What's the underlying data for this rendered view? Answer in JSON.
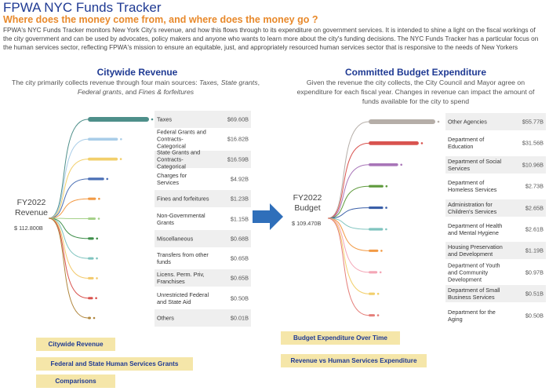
{
  "header": {
    "title": "FPWA NYC Funds Tracker",
    "subtitle": "Where does the money come from, and where does the money go ?",
    "intro": "FPWA's NYC Funds Tracker monitors New York City's revenue, and how this flows through to its expenditure on government services. It is intended to shine a light on the fiscal workings of the city government and can be used by advocates, policy makers and anyone who wants to learn more about the city's funding decisions. The NYC Funds Tracker has a particular focus on the human services sector, reflecting FPWA's mission to ensure an equitable, just, and appropriately resourced human services sector that is responsive to the needs of New Yorkers"
  },
  "revenue": {
    "title": "Citywide Revenue",
    "desc_plain": "The city primarily collects revenue through four main sources: ",
    "desc_em1": "Taxes, State grants",
    "desc_sep1": ", ",
    "desc_em2": "Federal grants",
    "desc_sep2": ", and ",
    "desc_em3": "Fines & forfeitures",
    "fy_line1": "FY2022",
    "fy_line2": "Revenue",
    "total": "$   112.800B",
    "items": [
      {
        "label": "Taxes",
        "value": "$69.60B",
        "amount": 69.6,
        "color": "#4e8f8a"
      },
      {
        "label": "Federal Grants and Contracts-Categorical",
        "value": "$16.82B",
        "amount": 16.82,
        "color": "#a9cde8"
      },
      {
        "label": "State Grants and Contracts-Categorical",
        "value": "$16.59B",
        "amount": 16.59,
        "color": "#f2cf6b"
      },
      {
        "label": "Charges for Services",
        "value": "$4.92B",
        "amount": 4.92,
        "color": "#4a6fb5"
      },
      {
        "label": "Fines and forfeitures",
        "value": "$1.23B",
        "amount": 1.23,
        "color": "#f29a45"
      },
      {
        "label": "Non-Governmental Grants",
        "value": "$1.15B",
        "amount": 1.15,
        "color": "#a6d18a"
      },
      {
        "label": "Miscellaneous",
        "value": "$0.68B",
        "amount": 0.68,
        "color": "#3f8f4a"
      },
      {
        "label": "Transfers from other funds",
        "value": "$0.65B",
        "amount": 0.65,
        "color": "#7fc4bf"
      },
      {
        "label": "Licens. Perm. Priv, Franchises",
        "value": "$0.65B",
        "amount": 0.65,
        "color": "#f2c96b"
      },
      {
        "label": "Unrestricted Federal and State Aid",
        "value": "$0.50B",
        "amount": 0.5,
        "color": "#d9534f"
      },
      {
        "label": "Others",
        "value": "$0.01B",
        "amount": 0.01,
        "color": "#b0863c"
      }
    ]
  },
  "expenditure": {
    "title": "Committed Budget Expenditure",
    "desc": "Given the revenue the city collects, the City Council and Mayor agree on expenditure for each fiscal year. Changes in revenue can impact the amount of funds available for the city to spend",
    "fy_line1": "FY2022",
    "fy_line2": "Budget",
    "total": "$   109.470B",
    "items": [
      {
        "label": "Other Agencies",
        "value": "$55.77B",
        "amount": 55.77,
        "color": "#b5aea8"
      },
      {
        "label": "Department of Education",
        "value": "$31.56B",
        "amount": 31.56,
        "color": "#d9534f"
      },
      {
        "label": "Department of Social Services",
        "value": "$10.96B",
        "amount": 10.96,
        "color": "#a875b8"
      },
      {
        "label": "Department of Homeless Services",
        "value": "$2.73B",
        "amount": 2.73,
        "color": "#5e9a3c"
      },
      {
        "label": "Administration for Children's Services",
        "value": "$2.65B",
        "amount": 2.65,
        "color": "#3a5fa8"
      },
      {
        "label": "Department of Health and Mental Hygiene",
        "value": "$2.61B",
        "amount": 2.61,
        "color": "#7fc4bf"
      },
      {
        "label": "Housing Preservation and Development",
        "value": "$1.19B",
        "amount": 1.19,
        "color": "#f29a45"
      },
      {
        "label": "Department of Youth and Community Development",
        "value": "$0.97B",
        "amount": 0.97,
        "color": "#f4a6b6"
      },
      {
        "label": "Department of Small Business Services",
        "value": "$0.51B",
        "amount": 0.51,
        "color": "#f2cf6b"
      },
      {
        "label": "Department for the Aging",
        "value": "$0.50B",
        "amount": 0.5,
        "color": "#e57f7a"
      }
    ]
  },
  "buttons": {
    "citywide_revenue": "Citywide Revenue",
    "fed_state_grants": "Federal and State Human Services Grants",
    "comparisons": "Comparisons",
    "budget_over_time": "Budget Expenditure Over Time",
    "rev_vs_hs": "Revenue vs Human Services Expenditure"
  },
  "icons": {
    "flow_arrow": "right-arrow-icon",
    "arrow_color": "#2f6fba"
  }
}
